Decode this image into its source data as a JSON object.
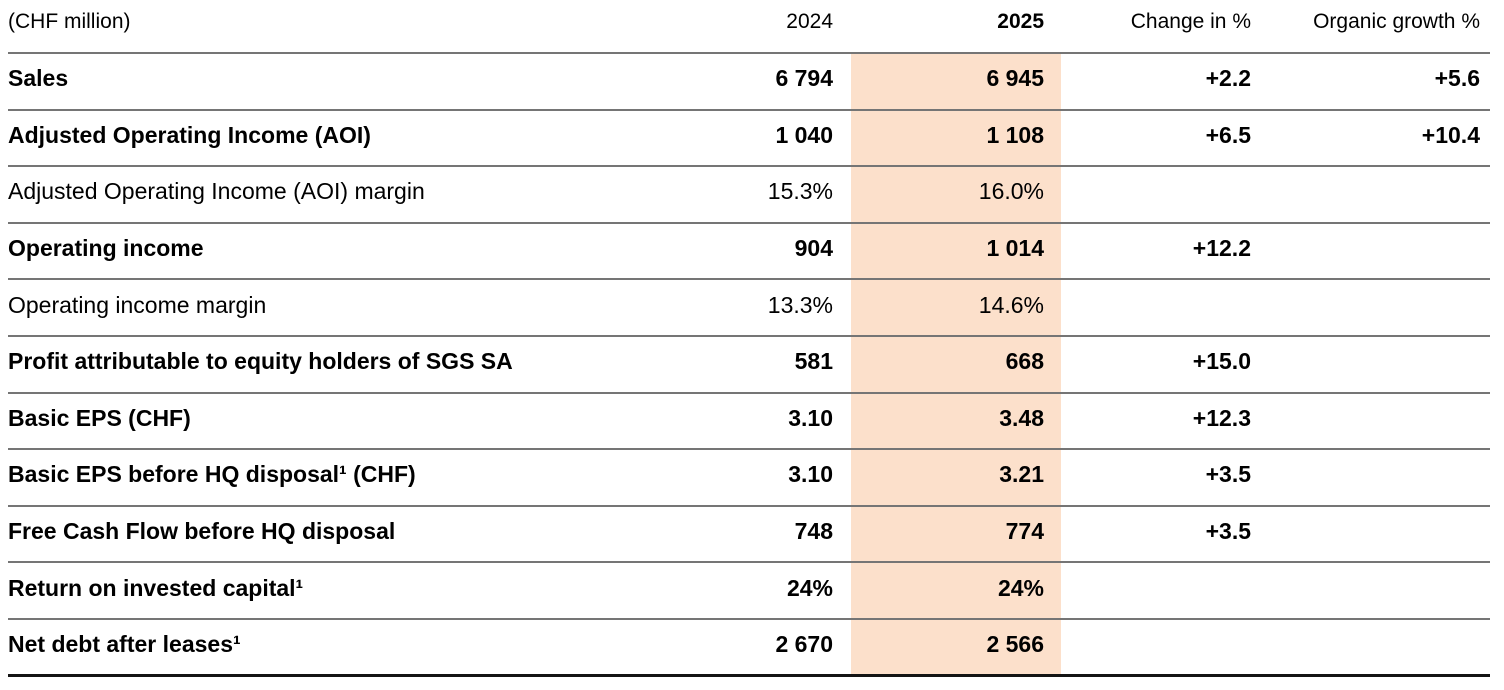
{
  "chart_data": {
    "type": "table",
    "unit_label": "(CHF million)",
    "columns": [
      "2024",
      "2025",
      "Change in %",
      "Organic growth %"
    ],
    "highlighted_column": "2025",
    "highlight_color": "#fce0cb",
    "rule_color": "#757575",
    "bottom_rule_color": "#141414",
    "rows": [
      {
        "label": "Sales",
        "bold": true,
        "y2024": "6 794",
        "y2025": "6 945",
        "change": "+2.2",
        "organic": "+5.6"
      },
      {
        "label": "Adjusted Operating Income (AOI)",
        "bold": true,
        "y2024": "1 040",
        "y2025": "1 108",
        "change": "+6.5",
        "organic": "+10.4"
      },
      {
        "label": "Adjusted Operating Income (AOI) margin",
        "bold": false,
        "y2024": "15.3%",
        "y2025": "16.0%",
        "change": "",
        "organic": ""
      },
      {
        "label": "Operating income",
        "bold": true,
        "y2024": "904",
        "y2025": "1 014",
        "change": "+12.2",
        "organic": ""
      },
      {
        "label": "Operating income margin",
        "bold": false,
        "y2024": "13.3%",
        "y2025": "14.6%",
        "change": "",
        "organic": ""
      },
      {
        "label": "Profit attributable to equity holders of SGS SA",
        "bold": true,
        "y2024": "581",
        "y2025": "668",
        "change": "+15.0",
        "organic": ""
      },
      {
        "label": "Basic EPS (CHF)",
        "bold": true,
        "y2024": "3.10",
        "y2025": "3.48",
        "change": "+12.3",
        "organic": ""
      },
      {
        "label": "Basic EPS before HQ disposal¹ (CHF)",
        "bold": true,
        "y2024": "3.10",
        "y2025": "3.21",
        "change": "+3.5",
        "organic": ""
      },
      {
        "label": "Free Cash Flow before HQ disposal",
        "bold": true,
        "y2024": "748",
        "y2025": "774",
        "change": "+3.5",
        "organic": ""
      },
      {
        "label": "Return on invested capital¹",
        "bold": true,
        "y2024": "24%",
        "y2025": "24%",
        "change": "",
        "organic": ""
      },
      {
        "label": "Net debt after leases¹",
        "bold": true,
        "y2024": "2 670",
        "y2025": "2 566",
        "change": "",
        "organic": ""
      }
    ]
  }
}
